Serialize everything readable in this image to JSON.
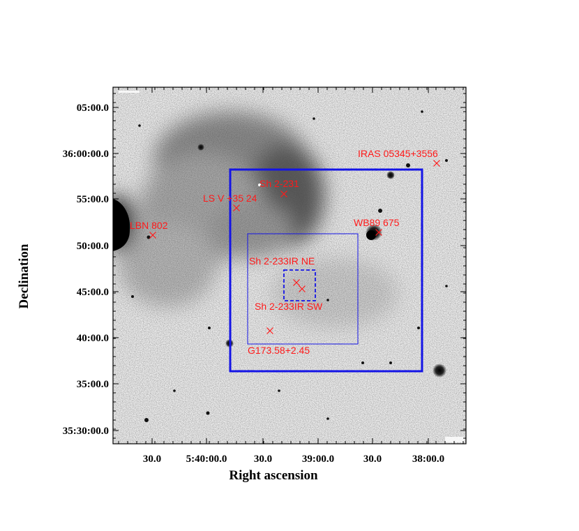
{
  "axes": {
    "xlabel": "Right ascension",
    "ylabel": "Declination",
    "x_ticks": [
      "30.0",
      "5:40:00.0",
      "30.0",
      "39:00.0",
      "30.0",
      "38:00.0"
    ],
    "y_ticks": [
      "05:00.0",
      "36:00:00.0",
      "55:00.0",
      "50:00.0",
      "45:00.0",
      "40:00.0",
      "35:00.0",
      "35:30:00.0"
    ]
  },
  "objects": [
    {
      "label": "IRAS 05345+3556"
    },
    {
      "label": "Sh 2-231"
    },
    {
      "label": "LS V +35 24"
    },
    {
      "label": "LBN 802"
    },
    {
      "label": "WB89 675"
    },
    {
      "label": "Sh 2-233IR NE"
    },
    {
      "label": "Sh 2-233IR SW"
    },
    {
      "label": "G173.58+2.45"
    }
  ],
  "colors": {
    "labels": "#ff1a1a",
    "boxes": "#1414e6",
    "frame": "#000000"
  }
}
